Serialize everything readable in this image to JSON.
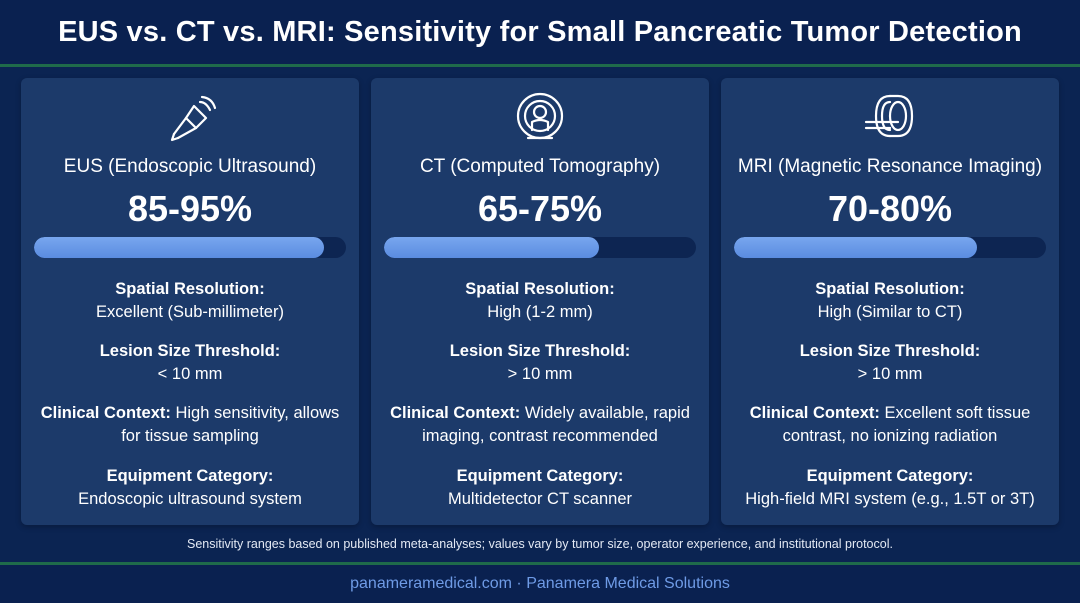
{
  "title": "EUS vs. CT vs. MRI: Sensitivity for Small Pancreatic Tumor Detection",
  "colors": {
    "background": "#0b2452",
    "card": "#1c3a6a",
    "accent": "#6a98e6",
    "rule": "#1f6b4a"
  },
  "cards": [
    {
      "icon": "ultrasound-probe-icon",
      "modality": "EUS (Endoscopic Ultrasound)",
      "sensitivity": "85-95%",
      "bar_fraction": 0.93,
      "resolution_label": "Spatial Resolution:",
      "resolution_value": "Excellent (Sub-millimeter)",
      "threshold_label": "Lesion Size Threshold:",
      "threshold_value": "< 10 mm",
      "context_label": "Clinical Context:",
      "context_value": " High sensitivity, allows for tissue sampling",
      "equipment_label": "Equipment Category:",
      "equipment_value": "Endoscopic ultrasound system"
    },
    {
      "icon": "ct-scanner-icon",
      "modality": "CT (Computed Tomography)",
      "sensitivity": "65-75%",
      "bar_fraction": 0.69,
      "resolution_label": "Spatial Resolution:",
      "resolution_value": "High (1-2 mm)",
      "threshold_label": "Lesion Size Threshold:",
      "threshold_value": "> 10 mm",
      "context_label": "Clinical Context:",
      "context_value": " Widely available, rapid imaging, contrast recommended",
      "equipment_label": "Equipment Category:",
      "equipment_value": "Multidetector CT scanner"
    },
    {
      "icon": "mri-scanner-icon",
      "modality": "MRI (Magnetic Resonance Imaging)",
      "sensitivity": "70-80%",
      "bar_fraction": 0.78,
      "resolution_label": "Spatial Resolution:",
      "resolution_value": "High (Similar to CT)",
      "threshold_label": "Lesion Size Threshold:",
      "threshold_value": "> 10 mm",
      "context_label": "Clinical Context:",
      "context_value": " Excellent soft tissue contrast, no ionizing radiation",
      "equipment_label": "Equipment Category:",
      "equipment_value": "High-field MRI system (e.g., 1.5T or 3T)"
    }
  ],
  "note": "Sensitivity ranges based on published meta-analyses; values vary by tumor size, operator experience, and institutional protocol.",
  "footer": "panameramedical.com · Panamera Medical Solutions"
}
